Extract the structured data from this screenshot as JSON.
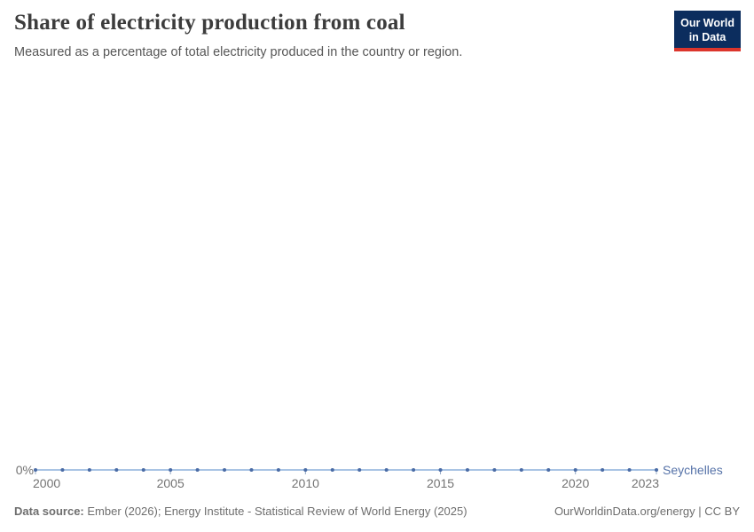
{
  "header": {
    "title": "Share of electricity production from coal",
    "subtitle": "Measured as a percentage of total electricity produced in the country or region.",
    "logo": {
      "line1": "Our World",
      "line2": "in Data"
    }
  },
  "chart_data": {
    "type": "line",
    "title": "Share of electricity production from coal",
    "subtitle": "Measured as a percentage of total electricity produced in the country or region.",
    "x": [
      2000,
      2001,
      2002,
      2003,
      2004,
      2005,
      2006,
      2007,
      2008,
      2009,
      2010,
      2011,
      2012,
      2013,
      2014,
      2015,
      2016,
      2017,
      2018,
      2019,
      2020,
      2021,
      2022,
      2023
    ],
    "series": [
      {
        "name": "Seychelles",
        "values": [
          0,
          0,
          0,
          0,
          0,
          0,
          0,
          0,
          0,
          0,
          0,
          0,
          0,
          0,
          0,
          0,
          0,
          0,
          0,
          0,
          0,
          0,
          0,
          0
        ],
        "unit": "%"
      }
    ],
    "x_ticks": [
      2000,
      2005,
      2010,
      2015,
      2020,
      2023
    ],
    "x_tick_labels": [
      "2000",
      "2005",
      "2010",
      "2015",
      "2020",
      "2023"
    ],
    "y_tick_labels": [
      "0%"
    ],
    "xlim": [
      2000,
      2023
    ],
    "ylim": [
      0,
      1
    ],
    "grid": false,
    "marker": "circle",
    "legend_position": "end-of-line"
  },
  "colors": {
    "line": "#a9c4e4",
    "marker": "#4a6ba5",
    "tick": "#93a9c6",
    "series_label": "#5572a8",
    "axis_text": "#737373",
    "logo_background": "#0c2d5e",
    "logo_stripe": "#dc352c"
  },
  "footer": {
    "source_label": "Data source:",
    "source_text": " Ember (2026); Energy Institute - Statistical Review of World Energy (2025)",
    "attribution": "OurWorldinData.org/energy | CC BY"
  }
}
